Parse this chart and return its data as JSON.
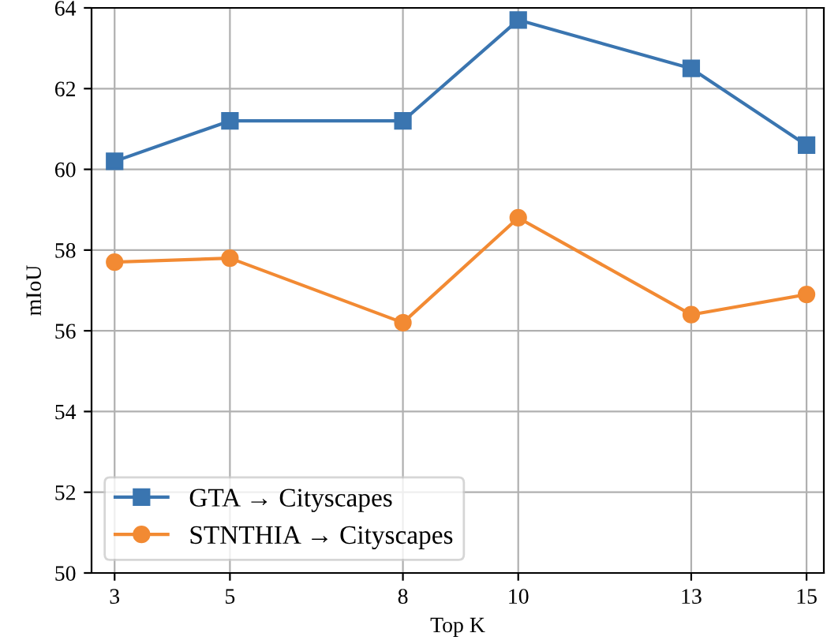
{
  "chart_data": {
    "type": "line",
    "xlabel": "Top K",
    "ylabel": "mIoU",
    "x": [
      3,
      5,
      8,
      10,
      13,
      15
    ],
    "series": [
      {
        "name": "GTA → Cityscapes",
        "color": "#3a75b0",
        "marker": "square",
        "values": [
          60.2,
          61.2,
          61.2,
          63.7,
          62.5,
          60.6
        ]
      },
      {
        "name": "STNTHIA → Cityscapes",
        "color": "#f28a33",
        "marker": "circle",
        "values": [
          57.7,
          57.8,
          56.2,
          58.8,
          56.4,
          56.9
        ]
      }
    ],
    "xlim": [
      2.6,
      15.3
    ],
    "xticks": [
      3,
      5,
      8,
      10,
      13,
      15
    ],
    "ylim": [
      50,
      64
    ],
    "yticks": [
      50,
      52,
      54,
      56,
      58,
      60,
      62,
      64
    ],
    "grid": true,
    "legend": "bottom left",
    "line_style": "solid"
  }
}
